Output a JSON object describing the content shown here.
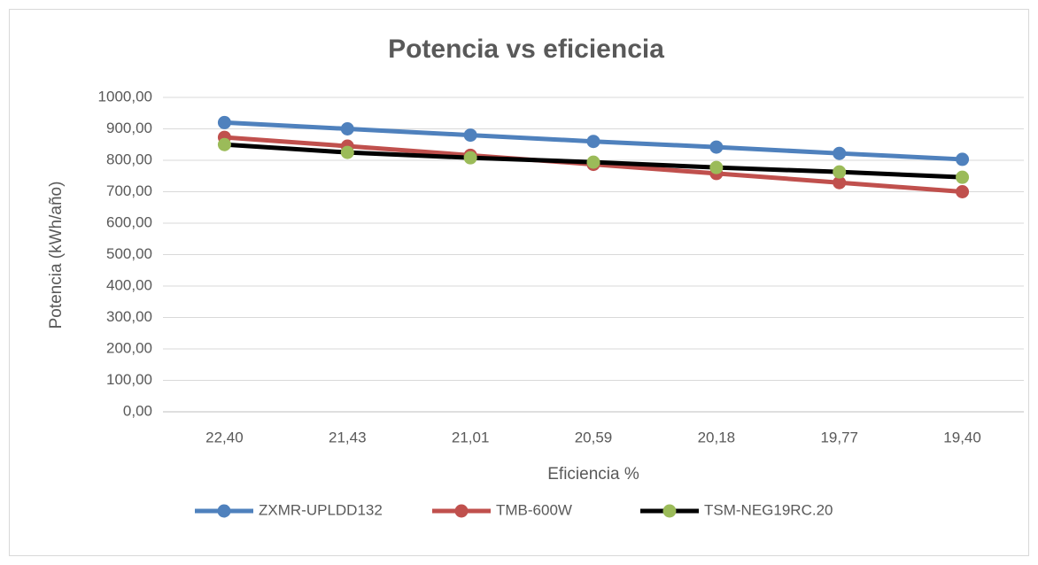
{
  "chart_data": {
    "type": "line",
    "title": "Potencia vs eficiencia",
    "x_label": "Eficiencia %",
    "y_label": "Potencia (kWh/año)",
    "categories": [
      "22,40",
      "21,43",
      "21,01",
      "20,59",
      "20,18",
      "19,77",
      "19,40"
    ],
    "series": [
      {
        "name": "ZXMR-UPLDD132",
        "color": "#4f81bd",
        "marker_color": "#4f81bd",
        "values": [
          920,
          900,
          880,
          860,
          842,
          822,
          803
        ]
      },
      {
        "name": "TMB-600W",
        "color": "#c0504d",
        "marker_color": "#c0504d",
        "values": [
          873,
          845,
          816,
          787,
          758,
          729,
          700
        ]
      },
      {
        "name": "TSM-NEG19RC.20",
        "color": "#000000",
        "marker_color": "#9bbb59",
        "values": [
          850,
          825,
          808,
          794,
          777,
          763,
          746
        ]
      }
    ],
    "ylim": [
      0,
      1000
    ],
    "yticks": [
      {
        "value": 0,
        "label": "0,00"
      },
      {
        "value": 100,
        "label": "100,00"
      },
      {
        "value": 200,
        "label": "200,00"
      },
      {
        "value": 300,
        "label": "300,00"
      },
      {
        "value": 400,
        "label": "400,00"
      },
      {
        "value": 500,
        "label": "500,00"
      },
      {
        "value": 600,
        "label": "600,00"
      },
      {
        "value": 700,
        "label": "700,00"
      },
      {
        "value": 800,
        "label": "800,00"
      },
      {
        "value": 900,
        "label": "900,00"
      },
      {
        "value": 1000,
        "label": "1000,00"
      }
    ],
    "grid": true,
    "legend": "bottom"
  }
}
